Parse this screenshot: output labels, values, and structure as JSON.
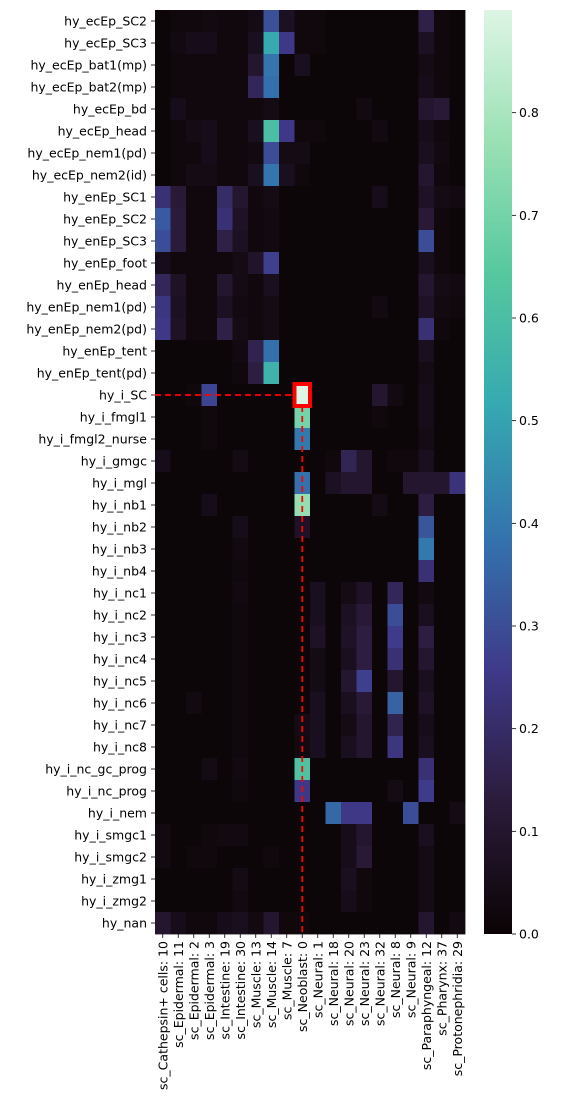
{
  "chart_data": {
    "type": "heatmap",
    "rows": [
      "hy_ecEp_SC2",
      "hy_ecEp_SC3",
      "hy_ecEp_bat1(mp)",
      "hy_ecEp_bat2(mp)",
      "hy_ecEp_bd",
      "hy_ecEp_head",
      "hy_ecEp_nem1(pd)",
      "hy_ecEp_nem2(id)",
      "hy_enEp_SC1",
      "hy_enEp_SC2",
      "hy_enEp_SC3",
      "hy_enEp_foot",
      "hy_enEp_head",
      "hy_enEp_nem1(pd)",
      "hy_enEp_nem2(pd)",
      "hy_enEp_tent",
      "hy_enEp_tent(pd)",
      "hy_i_SC",
      "hy_i_fmgl1",
      "hy_i_fmgl2_nurse",
      "hy_i_gmgc",
      "hy_i_mgl",
      "hy_i_nb1",
      "hy_i_nb2",
      "hy_i_nb3",
      "hy_i_nb4",
      "hy_i_nc1",
      "hy_i_nc2",
      "hy_i_nc3",
      "hy_i_nc4",
      "hy_i_nc5",
      "hy_i_nc6",
      "hy_i_nc7",
      "hy_i_nc8",
      "hy_i_nc_gc_prog",
      "hy_i_nc_prog",
      "hy_i_nem",
      "hy_i_smgc1",
      "hy_i_smgc2",
      "hy_i_zmg1",
      "hy_i_zmg2",
      "hy_nan"
    ],
    "columns": [
      "sc_Cathepsin+ cells: 10",
      "sc_Epidermal: 11",
      "sc_Epidermal: 2",
      "sc_Epidermal: 3",
      "sc_Intestine: 19",
      "sc_Intestine: 30",
      "sc_Muscle: 13",
      "sc_Muscle: 14",
      "sc_Muscle: 7",
      "sc_Neoblast: 0",
      "sc_Neural: 1",
      "sc_Neural: 18",
      "sc_Neural: 20",
      "sc_Neural: 23",
      "sc_Neural: 32",
      "sc_Neural: 8",
      "sc_Neural: 9",
      "sc_Paraphyngeal: 12",
      "sc_Pharynx: 37",
      "sc_Protonephridia: 29"
    ],
    "values": [
      [
        0.01,
        0.02,
        0.02,
        0.03,
        0.02,
        0.02,
        0.04,
        0.31,
        0.07,
        0.02,
        0.02,
        0.01,
        0.01,
        0.01,
        0.01,
        0.01,
        0.01,
        0.15,
        0.02,
        0.01
      ],
      [
        0.01,
        0.03,
        0.05,
        0.05,
        0.02,
        0.02,
        0.06,
        0.52,
        0.25,
        0.02,
        0.02,
        0.01,
        0.01,
        0.01,
        0.01,
        0.01,
        0.01,
        0.07,
        0.02,
        0.01
      ],
      [
        0.01,
        0.02,
        0.02,
        0.02,
        0.02,
        0.02,
        0.1,
        0.39,
        0.01,
        0.06,
        0.01,
        0.01,
        0.01,
        0.01,
        0.01,
        0.01,
        0.01,
        0.04,
        0.02,
        0.01
      ],
      [
        0.01,
        0.02,
        0.02,
        0.02,
        0.02,
        0.02,
        0.18,
        0.38,
        0.01,
        0.01,
        0.01,
        0.01,
        0.01,
        0.01,
        0.01,
        0.01,
        0.01,
        0.05,
        0.02,
        0.01
      ],
      [
        0.01,
        0.05,
        0.02,
        0.02,
        0.02,
        0.02,
        0.02,
        0.04,
        0.01,
        0.01,
        0.01,
        0.01,
        0.01,
        0.03,
        0.01,
        0.01,
        0.01,
        0.1,
        0.12,
        0.01
      ],
      [
        0.01,
        0.02,
        0.04,
        0.05,
        0.02,
        0.02,
        0.06,
        0.6,
        0.25,
        0.02,
        0.02,
        0.01,
        0.01,
        0.01,
        0.03,
        0.01,
        0.01,
        0.05,
        0.02,
        0.01
      ],
      [
        0.01,
        0.02,
        0.02,
        0.05,
        0.02,
        0.02,
        0.03,
        0.3,
        0.04,
        0.04,
        0.01,
        0.01,
        0.01,
        0.01,
        0.01,
        0.01,
        0.01,
        0.06,
        0.03,
        0.01
      ],
      [
        0.01,
        0.02,
        0.04,
        0.04,
        0.02,
        0.02,
        0.06,
        0.39,
        0.06,
        0.02,
        0.01,
        0.01,
        0.01,
        0.01,
        0.01,
        0.01,
        0.01,
        0.1,
        0.02,
        0.01
      ],
      [
        0.22,
        0.12,
        0.02,
        0.02,
        0.2,
        0.1,
        0.02,
        0.04,
        0.01,
        0.01,
        0.01,
        0.01,
        0.01,
        0.01,
        0.05,
        0.01,
        0.01,
        0.08,
        0.04,
        0.03
      ],
      [
        0.33,
        0.13,
        0.02,
        0.02,
        0.22,
        0.08,
        0.02,
        0.03,
        0.01,
        0.01,
        0.01,
        0.01,
        0.01,
        0.01,
        0.01,
        0.01,
        0.01,
        0.12,
        0.02,
        0.01
      ],
      [
        0.3,
        0.13,
        0.02,
        0.02,
        0.15,
        0.07,
        0.02,
        0.03,
        0.01,
        0.01,
        0.01,
        0.01,
        0.01,
        0.01,
        0.01,
        0.01,
        0.01,
        0.3,
        0.02,
        0.01
      ],
      [
        0.05,
        0.02,
        0.02,
        0.02,
        0.02,
        0.04,
        0.09,
        0.27,
        0.01,
        0.01,
        0.01,
        0.01,
        0.01,
        0.01,
        0.01,
        0.01,
        0.01,
        0.06,
        0.02,
        0.01
      ],
      [
        0.18,
        0.08,
        0.02,
        0.02,
        0.1,
        0.04,
        0.02,
        0.06,
        0.01,
        0.01,
        0.01,
        0.01,
        0.01,
        0.01,
        0.01,
        0.01,
        0.01,
        0.1,
        0.04,
        0.03
      ],
      [
        0.24,
        0.07,
        0.02,
        0.02,
        0.07,
        0.03,
        0.02,
        0.04,
        0.01,
        0.01,
        0.01,
        0.01,
        0.01,
        0.01,
        0.03,
        0.01,
        0.01,
        0.08,
        0.03,
        0.02
      ],
      [
        0.25,
        0.08,
        0.02,
        0.02,
        0.15,
        0.04,
        0.02,
        0.04,
        0.01,
        0.01,
        0.01,
        0.01,
        0.01,
        0.01,
        0.01,
        0.01,
        0.01,
        0.22,
        0.02,
        0.01
      ],
      [
        0.01,
        0.01,
        0.01,
        0.01,
        0.01,
        0.03,
        0.16,
        0.38,
        0.01,
        0.01,
        0.01,
        0.01,
        0.01,
        0.01,
        0.01,
        0.01,
        0.01,
        0.06,
        0.01,
        0.01
      ],
      [
        0.01,
        0.01,
        0.01,
        0.01,
        0.01,
        0.02,
        0.14,
        0.55,
        0.01,
        0.01,
        0.01,
        0.01,
        0.01,
        0.01,
        0.01,
        0.01,
        0.01,
        0.04,
        0.01,
        0.01
      ],
      [
        0.01,
        0.01,
        0.02,
        0.28,
        0.01,
        0.01,
        0.01,
        0.01,
        0.01,
        0.9,
        0.01,
        0.01,
        0.01,
        0.01,
        0.1,
        0.03,
        0.01,
        0.05,
        0.01,
        0.01
      ],
      [
        0.01,
        0.01,
        0.01,
        0.02,
        0.01,
        0.01,
        0.01,
        0.01,
        0.01,
        0.7,
        0.01,
        0.01,
        0.01,
        0.01,
        0.02,
        0.01,
        0.01,
        0.05,
        0.01,
        0.01
      ],
      [
        0.01,
        0.01,
        0.01,
        0.02,
        0.01,
        0.01,
        0.01,
        0.01,
        0.01,
        0.4,
        0.01,
        0.01,
        0.01,
        0.01,
        0.01,
        0.01,
        0.01,
        0.04,
        0.01,
        0.01
      ],
      [
        0.05,
        0.01,
        0.01,
        0.01,
        0.01,
        0.04,
        0.01,
        0.01,
        0.01,
        0.01,
        0.01,
        0.02,
        0.17,
        0.1,
        0.01,
        0.02,
        0.02,
        0.06,
        0.01,
        0.01
      ],
      [
        0.01,
        0.01,
        0.01,
        0.01,
        0.01,
        0.01,
        0.01,
        0.01,
        0.01,
        0.38,
        0.01,
        0.07,
        0.1,
        0.1,
        0.01,
        0.01,
        0.1,
        0.1,
        0.1,
        0.23
      ],
      [
        0.01,
        0.01,
        0.01,
        0.05,
        0.01,
        0.01,
        0.01,
        0.01,
        0.01,
        0.76,
        0.01,
        0.01,
        0.01,
        0.01,
        0.04,
        0.01,
        0.01,
        0.14,
        0.01,
        0.01
      ],
      [
        0.01,
        0.01,
        0.01,
        0.01,
        0.01,
        0.05,
        0.01,
        0.01,
        0.01,
        0.08,
        0.01,
        0.01,
        0.01,
        0.01,
        0.01,
        0.01,
        0.01,
        0.32,
        0.01,
        0.01
      ],
      [
        0.01,
        0.01,
        0.01,
        0.01,
        0.01,
        0.03,
        0.01,
        0.01,
        0.01,
        0.01,
        0.01,
        0.01,
        0.01,
        0.01,
        0.01,
        0.01,
        0.01,
        0.4,
        0.01,
        0.01
      ],
      [
        0.01,
        0.01,
        0.01,
        0.01,
        0.01,
        0.02,
        0.01,
        0.01,
        0.01,
        0.01,
        0.01,
        0.01,
        0.01,
        0.01,
        0.01,
        0.01,
        0.01,
        0.22,
        0.01,
        0.01
      ],
      [
        0.01,
        0.01,
        0.01,
        0.01,
        0.01,
        0.03,
        0.01,
        0.01,
        0.01,
        0.01,
        0.06,
        0.01,
        0.04,
        0.08,
        0.01,
        0.18,
        0.01,
        0.03,
        0.01,
        0.01
      ],
      [
        0.01,
        0.01,
        0.01,
        0.01,
        0.01,
        0.02,
        0.01,
        0.01,
        0.01,
        0.01,
        0.06,
        0.01,
        0.07,
        0.12,
        0.01,
        0.3,
        0.01,
        0.06,
        0.01,
        0.01
      ],
      [
        0.01,
        0.01,
        0.01,
        0.01,
        0.01,
        0.02,
        0.01,
        0.01,
        0.01,
        0.01,
        0.08,
        0.01,
        0.08,
        0.14,
        0.01,
        0.26,
        0.01,
        0.14,
        0.01,
        0.01
      ],
      [
        0.01,
        0.01,
        0.01,
        0.01,
        0.01,
        0.02,
        0.01,
        0.01,
        0.01,
        0.01,
        0.04,
        0.01,
        0.06,
        0.14,
        0.01,
        0.22,
        0.01,
        0.1,
        0.01,
        0.01
      ],
      [
        0.01,
        0.01,
        0.01,
        0.01,
        0.01,
        0.02,
        0.01,
        0.01,
        0.01,
        0.01,
        0.04,
        0.01,
        0.1,
        0.27,
        0.01,
        0.1,
        0.01,
        0.06,
        0.01,
        0.01
      ],
      [
        0.01,
        0.01,
        0.03,
        0.01,
        0.01,
        0.02,
        0.01,
        0.01,
        0.01,
        0.01,
        0.06,
        0.01,
        0.06,
        0.12,
        0.01,
        0.35,
        0.01,
        0.08,
        0.01,
        0.01
      ],
      [
        0.01,
        0.01,
        0.01,
        0.01,
        0.01,
        0.02,
        0.01,
        0.01,
        0.01,
        0.04,
        0.06,
        0.01,
        0.04,
        0.1,
        0.01,
        0.16,
        0.01,
        0.05,
        0.01,
        0.01
      ],
      [
        0.01,
        0.01,
        0.01,
        0.01,
        0.01,
        0.02,
        0.01,
        0.01,
        0.01,
        0.03,
        0.06,
        0.01,
        0.06,
        0.1,
        0.01,
        0.24,
        0.01,
        0.06,
        0.01,
        0.01
      ],
      [
        0.01,
        0.01,
        0.01,
        0.04,
        0.01,
        0.03,
        0.01,
        0.01,
        0.01,
        0.62,
        0.01,
        0.01,
        0.01,
        0.01,
        0.01,
        0.01,
        0.01,
        0.22,
        0.01,
        0.01
      ],
      [
        0.01,
        0.01,
        0.01,
        0.01,
        0.01,
        0.02,
        0.01,
        0.01,
        0.01,
        0.25,
        0.01,
        0.01,
        0.01,
        0.01,
        0.01,
        0.04,
        0.01,
        0.26,
        0.01,
        0.01
      ],
      [
        0.01,
        0.01,
        0.01,
        0.01,
        0.01,
        0.01,
        0.01,
        0.01,
        0.01,
        0.01,
        0.01,
        0.36,
        0.25,
        0.25,
        0.01,
        0.01,
        0.3,
        0.01,
        0.01,
        0.04
      ],
      [
        0.03,
        0.01,
        0.01,
        0.02,
        0.03,
        0.03,
        0.01,
        0.01,
        0.01,
        0.01,
        0.01,
        0.01,
        0.05,
        0.1,
        0.01,
        0.01,
        0.01,
        0.06,
        0.01,
        0.01
      ],
      [
        0.03,
        0.01,
        0.02,
        0.02,
        0.01,
        0.01,
        0.01,
        0.02,
        0.01,
        0.01,
        0.01,
        0.01,
        0.05,
        0.12,
        0.01,
        0.01,
        0.01,
        0.04,
        0.01,
        0.01
      ],
      [
        0.01,
        0.01,
        0.01,
        0.01,
        0.01,
        0.04,
        0.01,
        0.01,
        0.01,
        0.01,
        0.01,
        0.01,
        0.06,
        0.02,
        0.01,
        0.01,
        0.01,
        0.04,
        0.01,
        0.01
      ],
      [
        0.01,
        0.01,
        0.01,
        0.01,
        0.01,
        0.03,
        0.01,
        0.01,
        0.01,
        0.01,
        0.01,
        0.01,
        0.05,
        0.02,
        0.01,
        0.01,
        0.01,
        0.04,
        0.01,
        0.01
      ],
      [
        0.1,
        0.05,
        0.02,
        0.02,
        0.05,
        0.06,
        0.03,
        0.1,
        0.02,
        0.02,
        0.01,
        0.01,
        0.01,
        0.01,
        0.01,
        0.01,
        0.01,
        0.1,
        0.01,
        0.03
      ]
    ],
    "highlight": {
      "row": "hy_i_SC",
      "column": "sc_Neoblast: 0",
      "color": "#ff0000"
    },
    "colorbar": {
      "vmin": 0.0,
      "vmax": 0.9,
      "ticks": [
        "0.0",
        "0.1",
        "0.2",
        "0.3",
        "0.4",
        "0.5",
        "0.6",
        "0.7",
        "0.8"
      ]
    },
    "colormap_stops": [
      "#0b0405",
      "#2b1b3a",
      "#3f3a8a",
      "#3473ad",
      "#35a9b0",
      "#56c89f",
      "#9ae0b4",
      "#def5e5"
    ]
  }
}
